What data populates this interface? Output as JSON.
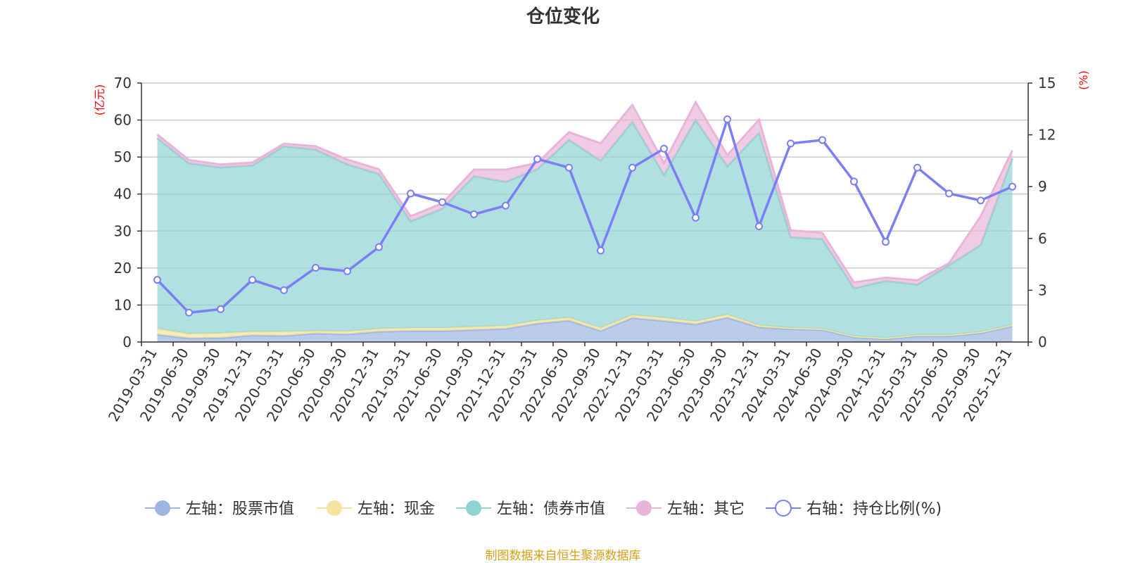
{
  "chart_data": {
    "type": "area",
    "title": "仓位变化",
    "y_left_unit": "(亿元)",
    "y_right_unit": "(%)",
    "ylim_left": [
      0,
      70
    ],
    "yticks_left": [
      0,
      10,
      20,
      30,
      40,
      50,
      60,
      70
    ],
    "ylim_right": [
      0,
      15
    ],
    "yticks_right": [
      0,
      3,
      6,
      9,
      12,
      15
    ],
    "grid": true,
    "legend_position": "bottom",
    "categories": [
      "2019-03-31",
      "2019-06-30",
      "2019-09-30",
      "2019-12-31",
      "2020-03-31",
      "2020-06-30",
      "2020-09-30",
      "2020-12-31",
      "2021-03-31",
      "2021-06-30",
      "2021-09-30",
      "2021-12-31",
      "2022-03-31",
      "2022-06-30",
      "2022-09-30",
      "2022-12-31",
      "2023-03-31",
      "2023-06-30",
      "2023-09-30",
      "2023-12-31",
      "2024-03-31",
      "2024-06-30",
      "2024-09-30",
      "2024-12-31",
      "2025-03-31",
      "2025-06-30",
      "2025-09-30",
      "2025-12-31"
    ],
    "series": [
      {
        "name": "左轴：股票市值",
        "axis": "left",
        "stacked": true,
        "color": "#9db6e0",
        "values": [
          2.0,
          1.0,
          1.1,
          1.8,
          1.7,
          2.3,
          2.1,
          2.8,
          3.0,
          3.0,
          3.3,
          3.6,
          5.0,
          5.8,
          3.0,
          6.5,
          5.7,
          4.8,
          6.6,
          4.0,
          3.5,
          3.3,
          1.3,
          0.8,
          1.6,
          1.6,
          2.4,
          4.3
        ]
      },
      {
        "name": "左轴：现金",
        "axis": "left",
        "stacked": true,
        "color": "#f5e3a0",
        "values": [
          1.6,
          1.2,
          1.3,
          1.0,
          1.1,
          0.7,
          0.8,
          0.8,
          0.8,
          0.8,
          0.8,
          0.8,
          0.8,
          0.8,
          0.8,
          0.8,
          0.8,
          0.8,
          0.8,
          0.5,
          0.3,
          0.3,
          0.3,
          0.3,
          0.3,
          0.3,
          0.3,
          0.3
        ]
      },
      {
        "name": "左轴：债券市值",
        "axis": "left",
        "stacked": true,
        "color": "#8fd3d3",
        "values": [
          51.5,
          46.1,
          44.8,
          44.9,
          50.1,
          49.0,
          45.1,
          41.8,
          28.8,
          32.2,
          40.7,
          38.9,
          40.9,
          48.0,
          45.2,
          52.2,
          38.7,
          54.4,
          40.1,
          52.0,
          24.5,
          24.2,
          12.9,
          15.4,
          13.6,
          18.9,
          23.5,
          45.0
        ]
      },
      {
        "name": "左轴：其它",
        "axis": "left",
        "stacked": true,
        "color": "#e8b5d8",
        "values": [
          1.0,
          0.9,
          0.8,
          0.8,
          0.7,
          0.9,
          1.3,
          1.3,
          1.4,
          1.5,
          1.8,
          3.3,
          1.7,
          2.1,
          4.7,
          4.6,
          3.2,
          4.8,
          3.0,
          3.6,
          1.9,
          1.7,
          1.6,
          0.9,
          1.2,
          0.5,
          7.8,
          2.2
        ]
      },
      {
        "name": "右轴：持仓比例(%)",
        "axis": "right",
        "stacked": false,
        "color": "#7b7ef5",
        "values": [
          3.6,
          1.7,
          1.9,
          3.6,
          3.0,
          4.3,
          4.1,
          5.5,
          8.6,
          8.1,
          7.4,
          7.9,
          10.6,
          10.1,
          5.3,
          10.1,
          11.2,
          7.2,
          12.9,
          6.7,
          11.5,
          11.7,
          9.3,
          5.8,
          10.1,
          8.6,
          8.2,
          9.0
        ]
      }
    ]
  },
  "footer": {
    "source": "制图数据来自恒生聚源数据库",
    "source_color": "#d4a017"
  }
}
